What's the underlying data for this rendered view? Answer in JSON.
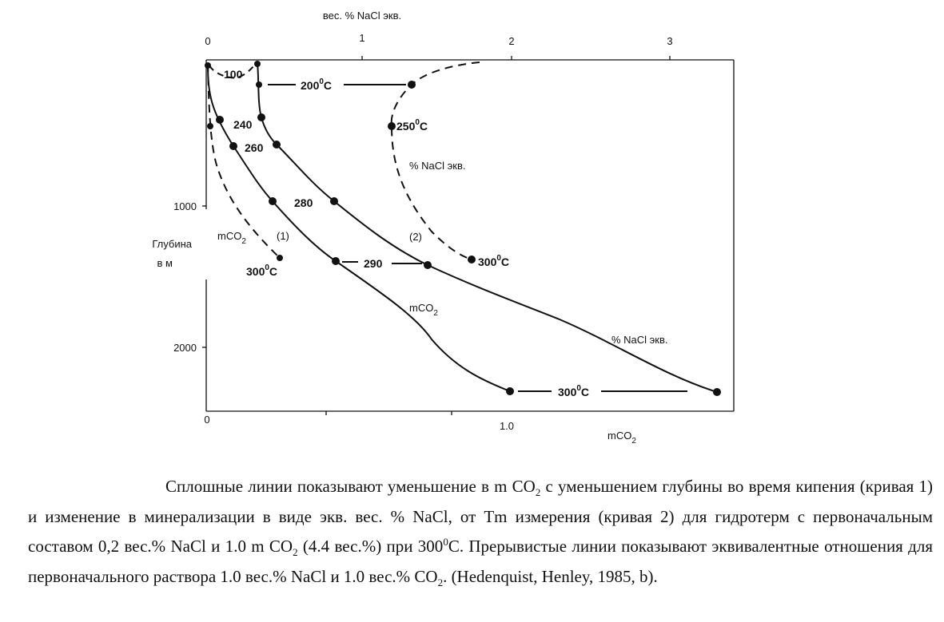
{
  "figure": {
    "top_axis_title": "вес. % NaCl экв.",
    "top_ticks": [
      "0",
      "1",
      "2",
      "3"
    ],
    "left_ticks": [
      "1000",
      "2000"
    ],
    "left_axis_title": [
      "Глубина",
      "в м"
    ],
    "bottom_ticks": [
      "0",
      "1.0"
    ],
    "bottom_axis_title": {
      "base": "mCO",
      "sub": "2"
    },
    "labels": {
      "t100": "100",
      "t200": {
        "base": "200",
        "sup": "0",
        "rest": "C"
      },
      "t250": {
        "base": "250",
        "sup": "0",
        "rest": "C"
      },
      "nacl_upper": "% NaCl экв.",
      "nacl_lower": "% NaCl экв.",
      "t240": "240",
      "t260": "260",
      "t280": "280",
      "t290": "290",
      "mco2_left": {
        "base": "mCO",
        "sub": "2"
      },
      "mco2_mid": {
        "base": "mCO",
        "sub": "2"
      },
      "curve1": "(1)",
      "curve2": "(2)",
      "t300_left": {
        "base": "300",
        "sup": "0",
        "rest": "C"
      },
      "t300_right": {
        "base": "300",
        "sup": "0",
        "rest": "C"
      },
      "t300_bottom": {
        "base": "300",
        "sup": "0",
        "rest": "C"
      }
    }
  },
  "caption": {
    "parts": [
      {
        "text": "Сплошные линии показывают уменьшение в m CO"
      },
      {
        "text": "2",
        "style": "sub"
      },
      {
        "text": " с уменьшением глубины во время кипения (кривая 1) и изменение в минерализации в виде экв. вес. % NaCl, от Tm измерения (кривая 2) для гидротерм с первоначальным составом 0,2 вес.% NaCl и 1.0 m CO"
      },
      {
        "text": "2",
        "style": "sub"
      },
      {
        "text": " (4.4 вес.%) при 300"
      },
      {
        "text": "0",
        "style": "sup"
      },
      {
        "text": "C. Прерывистые линии показывают эквивалентные отношения для первоначального раствора 1.0 вес.% NaCl и 1.0 вес.% CO"
      },
      {
        "text": "2",
        "style": "sub"
      },
      {
        "text": ". (Hedenquist, Henley, 1985, b)."
      }
    ]
  }
}
